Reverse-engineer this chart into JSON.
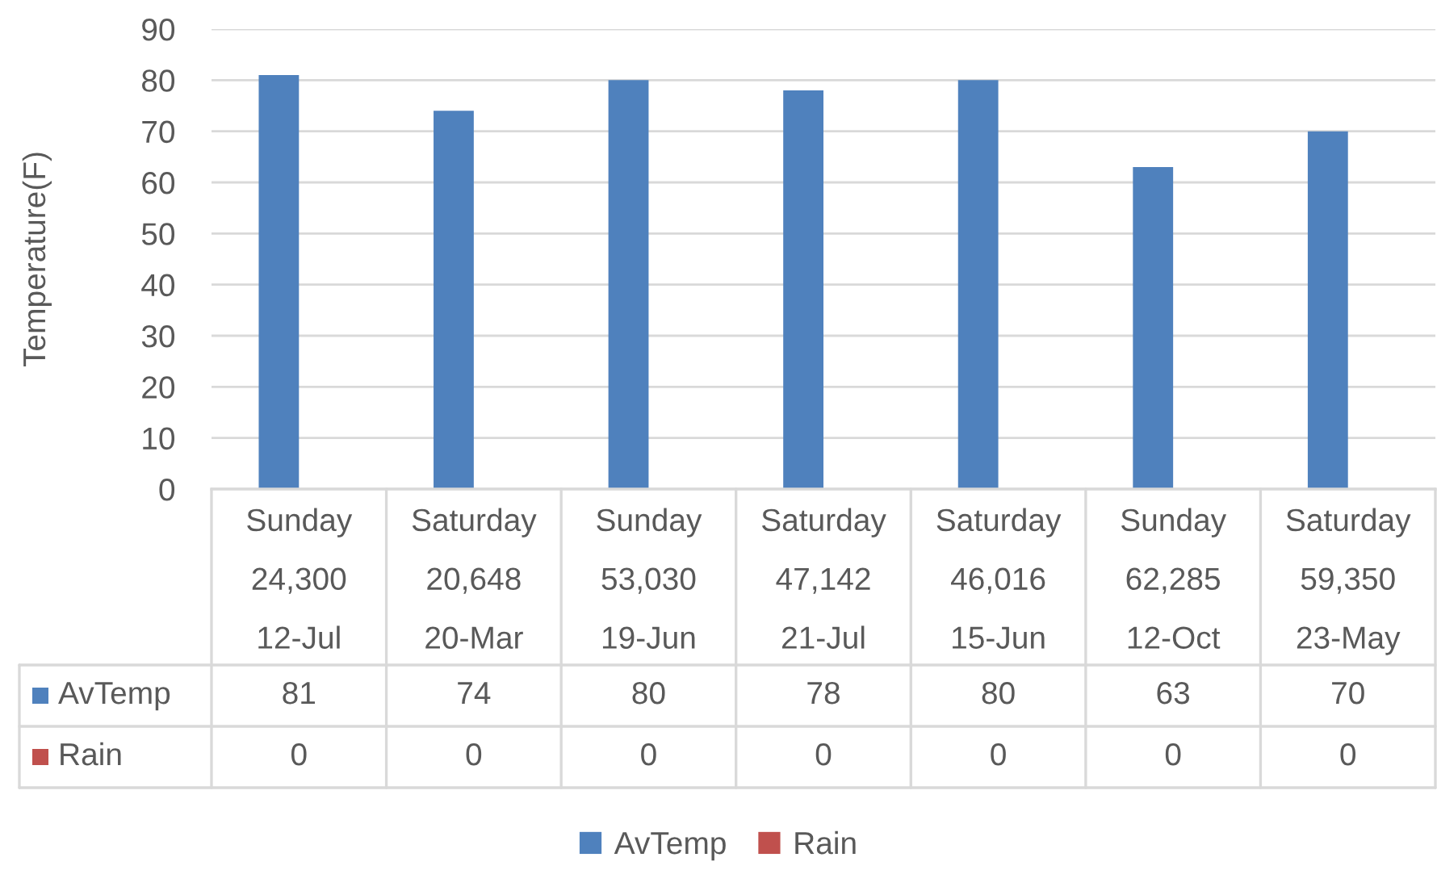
{
  "chart_data": {
    "type": "bar",
    "ylabel": "Temperature(F)",
    "categories": [
      "Sunday\n24,300\n12-Jul",
      "Saturday\n20,648\n20-Mar",
      "Sunday\n53,030\n19-Jun",
      "Saturday\n47,142\n21-Jul",
      "Saturday\n46,016\n15-Jun",
      "Sunday\n62,285\n12-Oct",
      "Saturday\n59,350\n23-May"
    ],
    "series": [
      {
        "name": "AvTemp",
        "color": "#4f81bd",
        "values": [
          81,
          74,
          80,
          78,
          80,
          63,
          70
        ]
      },
      {
        "name": "Rain",
        "color": "#c0504d",
        "values": [
          0,
          0,
          0,
          0,
          0,
          0,
          0
        ]
      }
    ],
    "ylim": [
      0,
      90
    ],
    "yticks": [
      0,
      10,
      20,
      30,
      40,
      50,
      60,
      70,
      80,
      90
    ],
    "grid": "y",
    "legend": "bottom",
    "data_labels": true
  }
}
